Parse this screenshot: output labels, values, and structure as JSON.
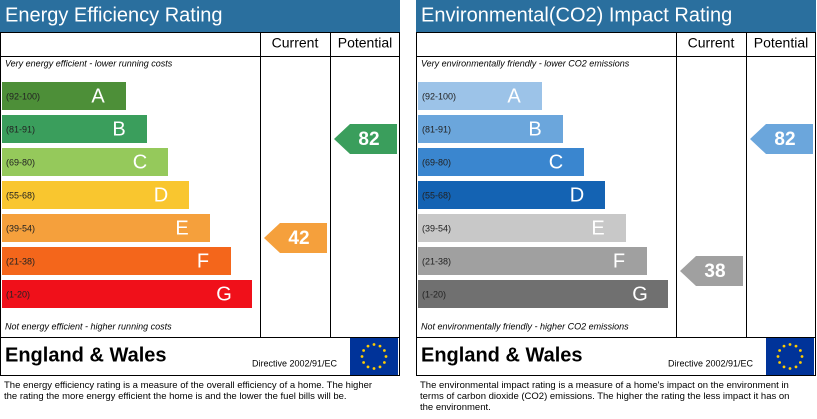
{
  "chart_data": [
    {
      "type": "epc",
      "title": "Energy Efficiency Rating",
      "columns": [
        "Current",
        "Potential"
      ],
      "top_note": "Very energy efficient - lower running costs",
      "bottom_note": "Not energy efficient - higher running costs",
      "bands": [
        {
          "range": "(92-100)",
          "letter": "A",
          "color": "#4d8f38"
        },
        {
          "range": "(81-91)",
          "letter": "B",
          "color": "#3a9e5c"
        },
        {
          "range": "(69-80)",
          "letter": "C",
          "color": "#95c95b"
        },
        {
          "range": "(55-68)",
          "letter": "D",
          "color": "#f9c62f"
        },
        {
          "range": "(39-54)",
          "letter": "E",
          "color": "#f5a03c"
        },
        {
          "range": "(21-38)",
          "letter": "F",
          "color": "#f4661b"
        },
        {
          "range": "(1-20)",
          "letter": "G",
          "color": "#f0101a"
        }
      ],
      "current": 42,
      "potential": 82,
      "country": "England & Wales",
      "directive": "Directive 2002/91/EC",
      "description": "The energy efficiency rating is a measure of the overall efficiency of a home. The higher the rating the more energy efficient the home is and the lower the fuel bills will be."
    },
    {
      "type": "epc",
      "title": "Environmental(CO2) Impact Rating",
      "columns": [
        "Current",
        "Potential"
      ],
      "top_note": "Very environmentally friendly - lower CO2 emissions",
      "bottom_note": "Not environmentally friendly - higher CO2 emissions",
      "bands": [
        {
          "range": "(92-100)",
          "letter": "A",
          "color": "#9cc3e8"
        },
        {
          "range": "(81-91)",
          "letter": "B",
          "color": "#6ba6dc"
        },
        {
          "range": "(69-80)",
          "letter": "C",
          "color": "#3a86cf"
        },
        {
          "range": "(55-68)",
          "letter": "D",
          "color": "#1463b3"
        },
        {
          "range": "(39-54)",
          "letter": "E",
          "color": "#c8c8c8"
        },
        {
          "range": "(21-38)",
          "letter": "F",
          "color": "#a0a0a0"
        },
        {
          "range": "(1-20)",
          "letter": "G",
          "color": "#707070"
        }
      ],
      "current": 38,
      "potential": 82,
      "country": "England & Wales",
      "directive": "Directive 2002/91/EC",
      "description": "The environmental impact rating is a measure of a home's impact on the environment in terms of carbon dioxide (CO2) emissions. The higher the rating the less impact it has on the environment."
    }
  ]
}
